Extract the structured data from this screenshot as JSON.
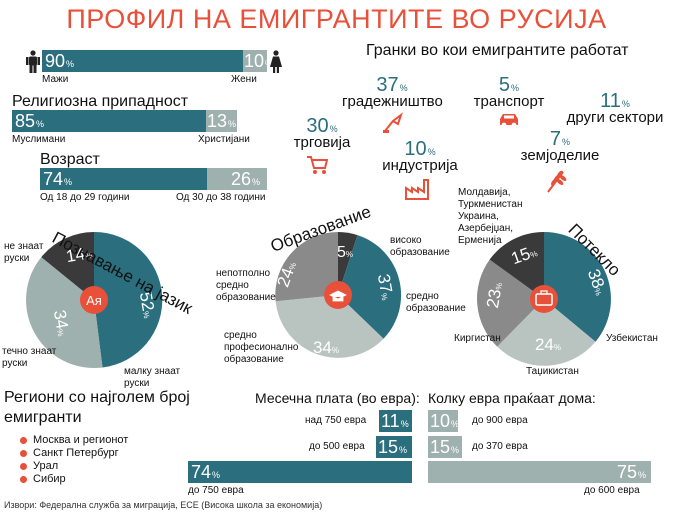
{
  "title": "ПРОФИЛ НА ЕМИГРАНТИТЕ ВО РУСИЈА",
  "gender": {
    "male_value": "90",
    "male_label": "Мажи",
    "female_value": "10",
    "female_label": "Жени",
    "pct": "%"
  },
  "religion": {
    "heading": "Религиозна припадност",
    "muslim_value": "85",
    "muslim_label": "Муслимани",
    "christian_value": "13",
    "christian_label": "Христијани"
  },
  "age": {
    "heading": "Возраст",
    "young_value": "74",
    "young_label": "Од 18 до 29 години",
    "old_value": "26",
    "old_label": "Од 30 до 38 години"
  },
  "sectors": {
    "heading": "Гранки во кои емигрантите работат",
    "items": [
      {
        "value": "37",
        "label": "градежништво",
        "icon": "crane-icon"
      },
      {
        "value": "5",
        "label": "транспорт",
        "icon": "car-icon"
      },
      {
        "value": "11",
        "label": "други сектори",
        "icon": ""
      },
      {
        "value": "30",
        "label": "трговија",
        "icon": "cart-icon"
      },
      {
        "value": "10",
        "label": "индустрија",
        "icon": "factory-icon"
      },
      {
        "value": "7",
        "label": "земјоделие",
        "icon": "wheat-icon"
      }
    ]
  },
  "language": {
    "heading": "Познавање на јазик",
    "center": "Ая",
    "slices": [
      {
        "value": "52",
        "label": "малку знаат руски"
      },
      {
        "value": "34",
        "label": "течно знаат руски"
      },
      {
        "value": "14",
        "label": "не знаат руски"
      }
    ]
  },
  "education": {
    "heading": "Образование",
    "slices": [
      {
        "value": "5",
        "label": "високо образование"
      },
      {
        "value": "37",
        "label": "средно образование"
      },
      {
        "value": "34",
        "label": "средно професионално образование"
      },
      {
        "value": "24",
        "label": "непотполно средно образование"
      }
    ]
  },
  "origin": {
    "heading": "Потекло",
    "slices": [
      {
        "value": "38",
        "label": "Узбекистан"
      },
      {
        "value": "24",
        "label": "Таџикистан"
      },
      {
        "value": "23",
        "label": "Киргистан"
      },
      {
        "value": "15",
        "label": "Молдавија, Туркменистан Украина, Азербејџан, Ерменија"
      }
    ]
  },
  "colors": {
    "teal": "#2b6f7e",
    "gray": "#9fb1ae",
    "lightgray": "#b9c4c1",
    "darkgray": "#8a8a8a",
    "black": "#3a3a3a",
    "orange": "#e8503a"
  },
  "regions": {
    "heading": "Региони со најголем број емигранти",
    "items": [
      "Москва и регионот",
      "Санкт Петербург",
      "Урал",
      "Сибир"
    ]
  },
  "salary": {
    "heading": "Месечна плата (во евра):",
    "rows": [
      {
        "label": "над 750 евра",
        "value": "11"
      },
      {
        "label": "до 500 евра",
        "value": "15"
      },
      {
        "label": "до 750 евра",
        "value": "74"
      }
    ]
  },
  "remit": {
    "heading": "Колку евра праќаат дома:",
    "rows": [
      {
        "label": "до 900 евра",
        "value": "10"
      },
      {
        "label": "до 370 евра",
        "value": "15"
      },
      {
        "label": "до 600 евра",
        "value": "75"
      }
    ]
  },
  "source": "Извори: Федерална служба за миграција, ECE (Висока школа за економија)"
}
